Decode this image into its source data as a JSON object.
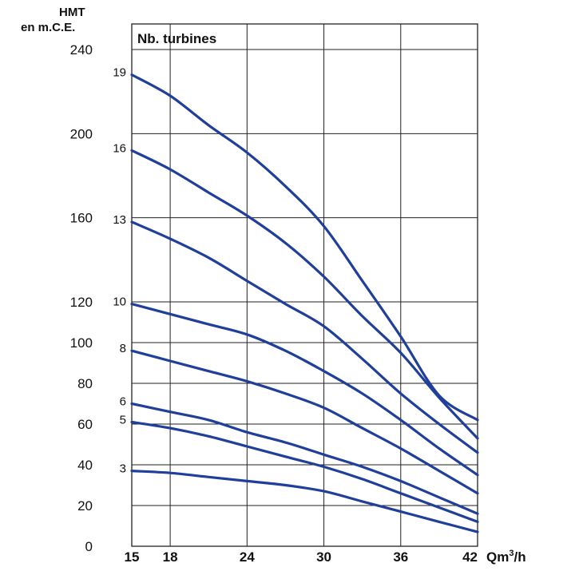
{
  "chart_data": {
    "type": "line",
    "ylabel": [
      "HMT",
      "en m.C.E."
    ],
    "xlabel": "Qm³/h",
    "xlabel_main": "Qm",
    "xlabel_sup": "3",
    "xlabel_tail": "/h",
    "legend_title": "Nb. turbines",
    "xlim": [
      15,
      42
    ],
    "ylim": [
      0,
      240
    ],
    "x_ticks": [
      15,
      18,
      24,
      30,
      36,
      42
    ],
    "y_ticks": [
      0,
      20,
      40,
      60,
      80,
      100,
      120,
      160,
      200,
      240
    ],
    "grid": true,
    "color": "#1f3f9a",
    "x": [
      15,
      18,
      21,
      24,
      27,
      30,
      33,
      36,
      39,
      42
    ],
    "series": [
      {
        "name": "19",
        "values": [
          228,
          218,
          204,
          191,
          175,
          156,
          130,
          103,
          74,
          62
        ]
      },
      {
        "name": "16",
        "values": [
          192,
          183,
          172,
          161,
          148,
          132,
          113,
          95,
          73,
          53
        ]
      },
      {
        "name": "13",
        "values": [
          158,
          150,
          141,
          130,
          119,
          108,
          92,
          75,
          60,
          46
        ]
      },
      {
        "name": "10",
        "values": [
          119,
          114,
          109,
          104,
          96,
          86,
          75,
          62,
          48,
          35
        ]
      },
      {
        "name": "8",
        "values": [
          96,
          91,
          86,
          81,
          75,
          68,
          58,
          48,
          37,
          26
        ]
      },
      {
        "name": "6",
        "values": [
          70,
          66,
          62,
          56,
          51,
          45,
          39,
          32,
          24,
          16
        ]
      },
      {
        "name": "5",
        "values": [
          61,
          58,
          54,
          49,
          44,
          39,
          33,
          26,
          19,
          12
        ]
      },
      {
        "name": "3",
        "values": [
          37,
          36,
          34,
          32,
          30,
          27,
          22,
          17,
          12,
          7
        ]
      }
    ]
  }
}
